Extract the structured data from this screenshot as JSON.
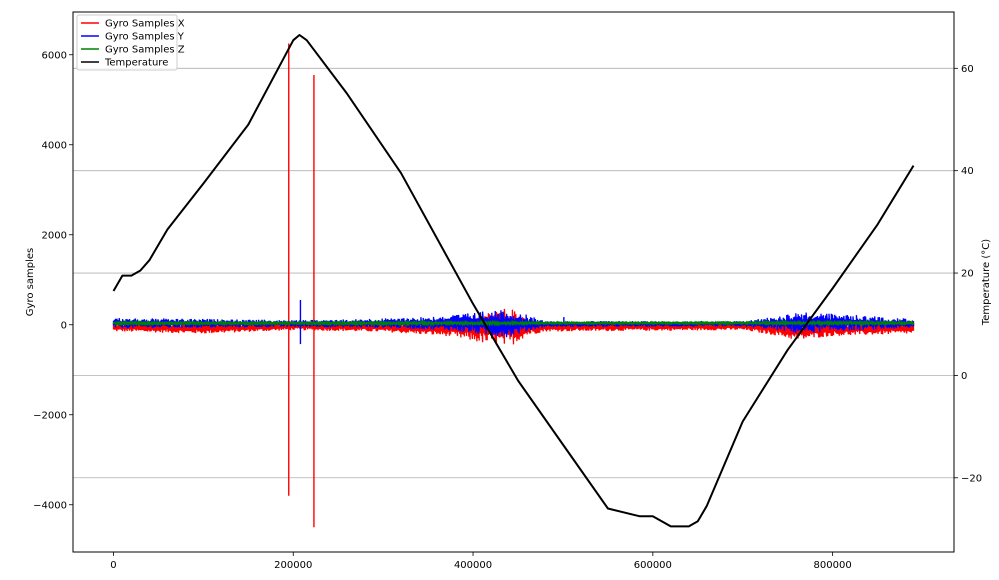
{
  "chart_data": {
    "type": "line",
    "title": "",
    "xlabel": "",
    "ylabel": "Gyro samples",
    "y2label": "Temperature (°C)",
    "xlim": [
      -45000,
      935000
    ],
    "ylim": [
      -5050,
      6950
    ],
    "y2lim": [
      -34.5,
      71.0
    ],
    "x_ticks": [
      0,
      200000,
      400000,
      600000,
      800000
    ],
    "y_ticks": [
      -4000,
      -2000,
      0,
      2000,
      4000,
      6000
    ],
    "y2_ticks": [
      -20,
      0,
      20,
      40,
      60
    ],
    "grid": "horizontal lines at right-axis ticks",
    "legend_position": "top-left",
    "series": [
      {
        "name": "Gyro Samples X",
        "color": "#ff0000",
        "axis": "left",
        "band": [
          [
            0,
            -150,
            40
          ],
          [
            100000,
            -200,
            40
          ],
          [
            200000,
            -120,
            40
          ],
          [
            300000,
            -160,
            40
          ],
          [
            370000,
            -250,
            60
          ],
          [
            420000,
            -450,
            300
          ],
          [
            440000,
            -500,
            380
          ],
          [
            460000,
            -250,
            150
          ],
          [
            480000,
            -150,
            40
          ],
          [
            700000,
            -120,
            40
          ],
          [
            740000,
            -250,
            60
          ],
          [
            760000,
            -350,
            80
          ],
          [
            800000,
            -250,
            60
          ],
          [
            890000,
            -200,
            40
          ]
        ],
        "spikes": [
          {
            "x": 195000,
            "min": -3800,
            "max": 6250
          },
          {
            "x": 223000,
            "min": -4500,
            "max": 5550
          }
        ]
      },
      {
        "name": "Gyro Samples Y",
        "color": "#0000ff",
        "axis": "left",
        "band": [
          [
            0,
            -80,
            150
          ],
          [
            100000,
            -70,
            130
          ],
          [
            200000,
            -50,
            100
          ],
          [
            300000,
            -70,
            140
          ],
          [
            370000,
            -120,
            200
          ],
          [
            420000,
            -250,
            320
          ],
          [
            440000,
            -280,
            330
          ],
          [
            460000,
            -150,
            220
          ],
          [
            480000,
            -50,
            80
          ],
          [
            700000,
            -40,
            80
          ],
          [
            740000,
            -120,
            200
          ],
          [
            760000,
            -200,
            280
          ],
          [
            800000,
            -150,
            250
          ],
          [
            890000,
            -80,
            130
          ]
        ],
        "spikes": [
          {
            "x": 208000,
            "min": -430,
            "max": 550
          },
          {
            "x": 501000,
            "min": -20,
            "max": 170
          }
        ]
      },
      {
        "name": "Gyro Samples Z",
        "color": "#008000",
        "axis": "left",
        "band": [
          [
            0,
            10,
            60
          ],
          [
            200000,
            15,
            55
          ],
          [
            400000,
            0,
            70
          ],
          [
            480000,
            20,
            55
          ],
          [
            700000,
            20,
            55
          ],
          [
            760000,
            10,
            70
          ],
          [
            890000,
            15,
            60
          ]
        ],
        "spikes": []
      },
      {
        "name": "Temperature",
        "color": "#000000",
        "axis": "right",
        "x": [
          0,
          10000,
          20000,
          30000,
          40000,
          60000,
          100000,
          150000,
          200000,
          207000,
          215000,
          260000,
          320000,
          400000,
          450000,
          500000,
          550000,
          585000,
          600000,
          620000,
          640000,
          650000,
          660000,
          700000,
          750000,
          800000,
          850000,
          890000
        ],
        "values": [
          16.5,
          19.5,
          19.5,
          20.5,
          22.5,
          28.5,
          37.5,
          49.0,
          65.5,
          66.5,
          65.5,
          55.0,
          39.5,
          14.0,
          -1.0,
          -13.5,
          -26.0,
          -27.5,
          -27.5,
          -29.5,
          -29.5,
          -28.5,
          -25.5,
          -9.0,
          5.0,
          17.0,
          29.5,
          41.0
        ]
      }
    ]
  }
}
